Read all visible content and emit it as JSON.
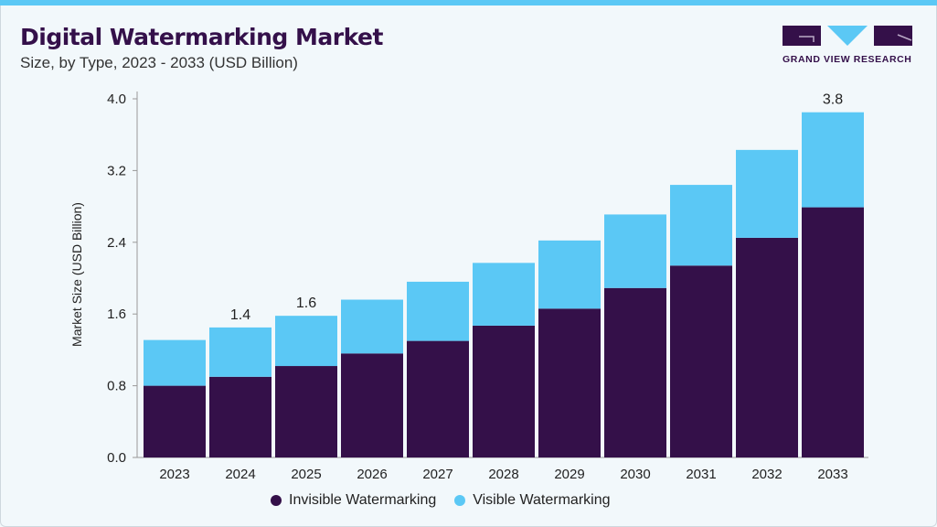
{
  "header": {
    "title": "Digital Watermarking Market",
    "subtitle": "Size, by Type, 2023 - 2033 (USD Billion)",
    "logo_text": "GRAND VIEW RESEARCH"
  },
  "colors": {
    "invisible": "#341049",
    "visible": "#5bc8f5",
    "accent": "#5bc8f5"
  },
  "chart_data": {
    "type": "bar",
    "stacked": true,
    "title": "Digital Watermarking Market",
    "subtitle": "Size, by Type, 2023 - 2033 (USD Billion)",
    "xlabel": "",
    "ylabel": "Market Size (USD Billion)",
    "ylim": [
      0,
      4.0
    ],
    "yticks": [
      "0.0",
      "0.8",
      "1.6",
      "2.4",
      "3.2",
      "4.0"
    ],
    "categories": [
      "2023",
      "2024",
      "2025",
      "2026",
      "2027",
      "2028",
      "2029",
      "2030",
      "2031",
      "2032",
      "2033"
    ],
    "series": [
      {
        "name": "Invisible Watermarking",
        "values": [
          0.8,
          0.9,
          1.02,
          1.16,
          1.3,
          1.47,
          1.66,
          1.89,
          2.14,
          2.45,
          2.79
        ]
      },
      {
        "name": "Visible Watermarking",
        "values": [
          0.51,
          0.55,
          0.56,
          0.6,
          0.66,
          0.7,
          0.76,
          0.82,
          0.9,
          0.98,
          1.06
        ]
      }
    ],
    "data_labels": [
      {
        "category": "2024",
        "text": "1.4"
      },
      {
        "category": "2025",
        "text": "1.6"
      },
      {
        "category": "2033",
        "text": "3.8"
      }
    ],
    "legend_position": "bottom",
    "grid": false
  }
}
